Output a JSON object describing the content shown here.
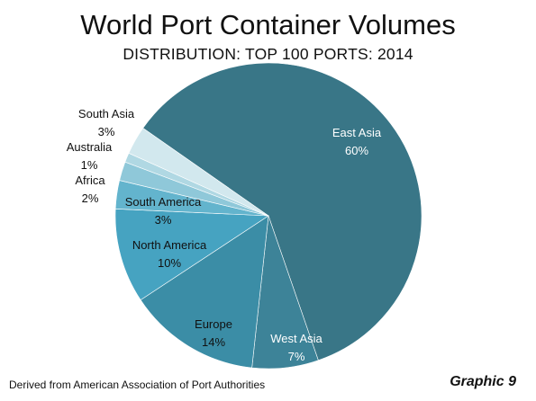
{
  "colors": {
    "text_dark": "#111111",
    "text_light": "#ffffff"
  },
  "chart_data": {
    "type": "pie",
    "title": "World Port Container Volumes",
    "subtitle": "DISTRIBUTION: TOP 100 PORTS: 2014",
    "slices": [
      {
        "label": "East Asia",
        "value": 60,
        "value_text": "60%",
        "color": "#397687",
        "label_color": "#ffffff"
      },
      {
        "label": "West Asia",
        "value": 7,
        "value_text": "7%",
        "color": "#3d8398",
        "label_color": "#ffffff"
      },
      {
        "label": "Europe",
        "value": 14,
        "value_text": "14%",
        "color": "#3b8da6",
        "label_color": "#111111"
      },
      {
        "label": "North America",
        "value": 10,
        "value_text": "10%",
        "color": "#46a3c1",
        "label_color": "#111111"
      },
      {
        "label": "South America",
        "value": 3,
        "value_text": "3%",
        "color": "#63b4cd",
        "label_color": "#111111"
      },
      {
        "label": "Africa",
        "value": 2,
        "value_text": "2%",
        "color": "#8fc8d9",
        "label_color": "#111111"
      },
      {
        "label": "Australia",
        "value": 1,
        "value_text": "1%",
        "color": "#b0d8e3",
        "label_color": "#111111"
      },
      {
        "label": "South Asia",
        "value": 3,
        "value_text": "3%",
        "color": "#d2e8ee",
        "label_color": "#111111"
      }
    ]
  },
  "footer": {
    "source": "Derived from  American  Association of Port Authorities",
    "graphic_tag": "Graphic 9"
  }
}
